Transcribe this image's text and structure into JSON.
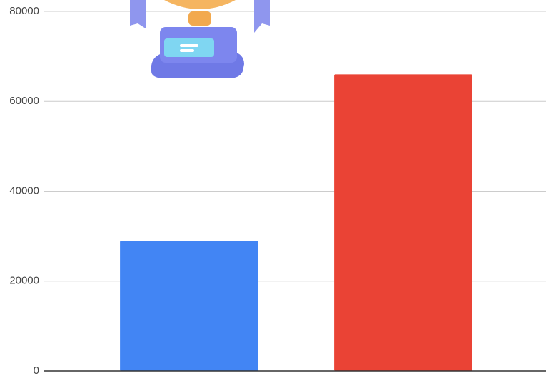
{
  "chart_data": {
    "type": "bar",
    "categories": [
      null,
      null
    ],
    "values": [
      29000,
      66000
    ],
    "colors": [
      "#4285f4",
      "#ea4335"
    ],
    "ylim": [
      0,
      80000
    ],
    "yticks": [
      0,
      20000,
      40000,
      60000,
      80000
    ],
    "grid": true
  }
}
